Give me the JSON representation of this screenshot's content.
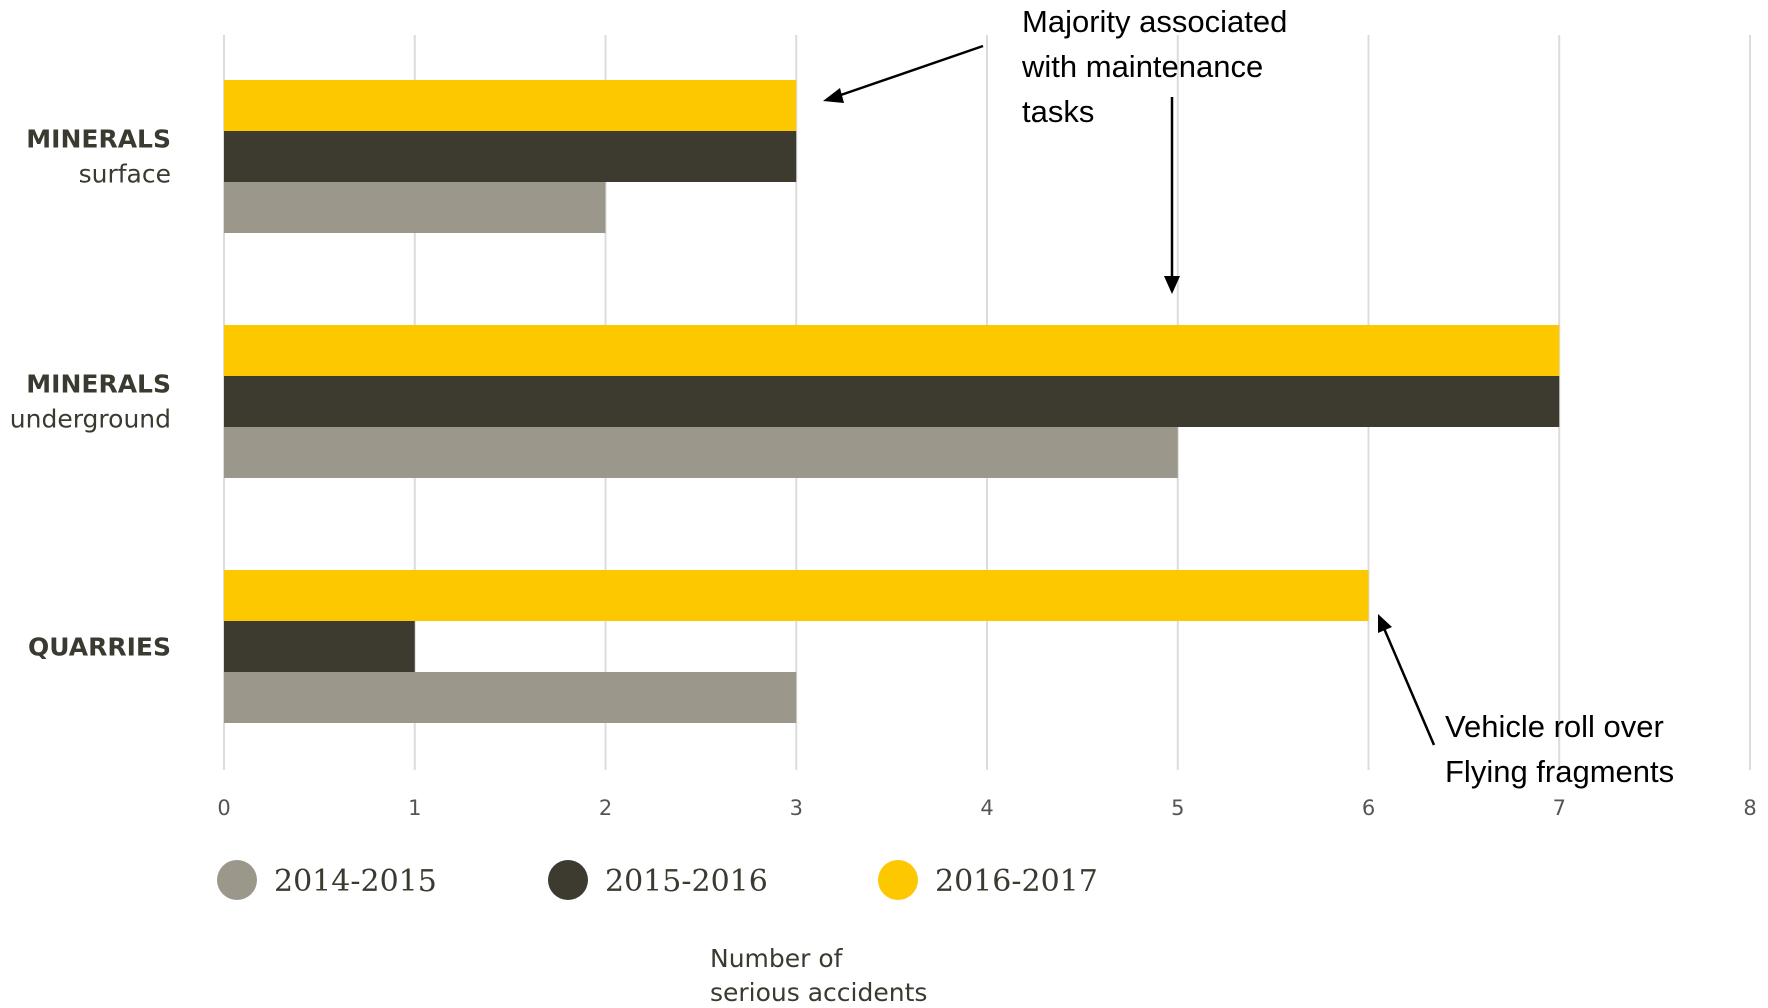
{
  "chart_data": {
    "type": "bar",
    "orientation": "horizontal",
    "categories": [
      {
        "main": "MINERALS",
        "sub": "surface"
      },
      {
        "main": "MINERALS",
        "sub": "underground"
      },
      {
        "main": "QUARRIES",
        "sub": ""
      }
    ],
    "series": [
      {
        "name": "2016-2017",
        "color": "#fdc800",
        "values": [
          3,
          7,
          6
        ]
      },
      {
        "name": "2015-2016",
        "color": "#3d3b2f",
        "values": [
          3,
          7,
          1
        ]
      },
      {
        "name": "2014-2015",
        "color": "#9b978a",
        "values": [
          2,
          5,
          3
        ]
      }
    ],
    "legend_order": [
      "2014-2015",
      "2015-2016",
      "2016-2017"
    ],
    "legend_placement": "bottom-left",
    "xlim": [
      0,
      8
    ],
    "xticks": [
      0,
      1,
      2,
      3,
      4,
      5,
      6,
      7,
      8
    ],
    "grid": true,
    "xlabel": [
      "Number of",
      "serious accidents"
    ],
    "annotations": [
      {
        "lines": [
          "Majority associated",
          "with maintenance",
          "tasks"
        ]
      },
      {
        "lines": [
          "Vehicle roll over",
          "Flying fragments"
        ]
      }
    ]
  }
}
